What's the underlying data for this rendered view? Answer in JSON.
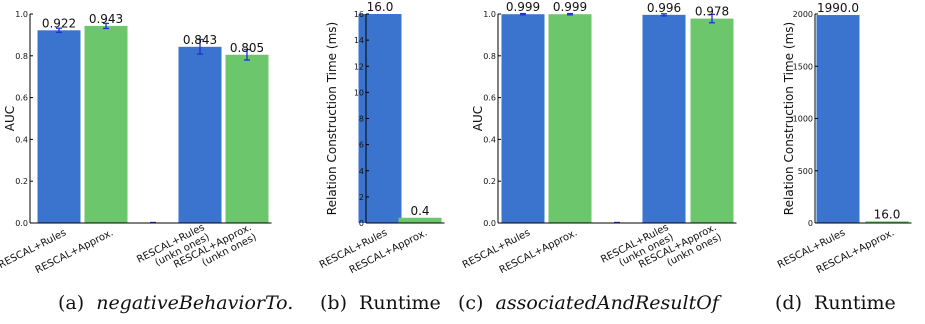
{
  "colors": {
    "blue": "#3a74cf",
    "green": "#6cc76c",
    "error": "#1f2fd6",
    "axis": "#000000"
  },
  "chart_data": [
    {
      "type": "bar",
      "caption": {
        "label": "(a)",
        "text": "negativeBehaviorTo.",
        "italic": true
      },
      "ylabel": "AUC",
      "ylim": [
        0,
        1.0
      ],
      "yticks": [
        0.0,
        0.2,
        0.4,
        0.6,
        0.8,
        1.0
      ],
      "ytick_labels": [
        "0.0",
        "0.2",
        "0.4",
        "0.6",
        "0.8",
        "1.0"
      ],
      "bars": [
        {
          "category": [
            "RESCAL+Rules"
          ],
          "value": 0.922,
          "label": "0.922",
          "color": "blue",
          "error": 0.01
        },
        {
          "category": [
            "RESCAL+Approx."
          ],
          "value": 0.943,
          "label": "0.943",
          "color": "green",
          "error": 0.012
        },
        {
          "category": [
            "RESCAL+Rules",
            "(unkn ones)"
          ],
          "value": 0.843,
          "label": "0.843",
          "color": "blue",
          "error": 0.035
        },
        {
          "category": [
            "RESCAL+Approx.",
            "(unkn ones)"
          ],
          "value": 0.805,
          "label": "0.805",
          "color": "green",
          "error": 0.025
        }
      ]
    },
    {
      "type": "bar",
      "caption": {
        "label": "(b)",
        "text": "Runtime",
        "italic": false
      },
      "ylabel": "Relation Construction Time (ms)",
      "ylim": [
        0,
        16
      ],
      "yticks": [
        0,
        2,
        4,
        6,
        8,
        10,
        12,
        14,
        16
      ],
      "ytick_labels": [
        "0",
        "2",
        "4",
        "6",
        "8",
        "10",
        "12",
        "14",
        "16"
      ],
      "bars": [
        {
          "category": [
            "RESCAL+Rules"
          ],
          "value": 16.0,
          "label": "16.0",
          "color": "blue"
        },
        {
          "category": [
            "RESCAL+Approx."
          ],
          "value": 0.4,
          "label": "0.4",
          "color": "green"
        }
      ]
    },
    {
      "type": "bar",
      "caption": {
        "label": "(c)",
        "text": "associatedAndResultOf",
        "italic": true
      },
      "ylabel": "AUC",
      "ylim": [
        0,
        1.0
      ],
      "yticks": [
        0.0,
        0.2,
        0.4,
        0.6,
        0.8,
        1.0
      ],
      "ytick_labels": [
        "0.0",
        "0.2",
        "0.4",
        "0.6",
        "0.8",
        "1.0"
      ],
      "bars": [
        {
          "category": [
            "RESCAL+Rules"
          ],
          "value": 0.999,
          "label": "0.999",
          "color": "blue",
          "error": 0.003
        },
        {
          "category": [
            "RESCAL+Approx."
          ],
          "value": 0.999,
          "label": "0.999",
          "color": "green",
          "error": 0.003
        },
        {
          "category": [
            "RESCAL+Rules",
            "(unkn ones)"
          ],
          "value": 0.996,
          "label": "0.996",
          "color": "blue",
          "error": 0.005
        },
        {
          "category": [
            "RESCAL+Approx.",
            "(unkn ones)"
          ],
          "value": 0.978,
          "label": "0.978",
          "color": "green",
          "error": 0.02
        }
      ]
    },
    {
      "type": "bar",
      "caption": {
        "label": "(d)",
        "text": "Runtime",
        "italic": false
      },
      "ylabel": "Relation Construction Time (ms)",
      "ylim": [
        0,
        2000
      ],
      "yticks": [
        0,
        500,
        1000,
        1500,
        2000
      ],
      "ytick_labels": [
        "0",
        "500",
        "1000",
        "1500",
        "2000"
      ],
      "bars": [
        {
          "category": [
            "RESCAL+Rules"
          ],
          "value": 1990.0,
          "label": "1990.0",
          "color": "blue"
        },
        {
          "category": [
            "RESCAL+Approx."
          ],
          "value": 16.0,
          "label": "16.0",
          "color": "green"
        }
      ]
    }
  ]
}
